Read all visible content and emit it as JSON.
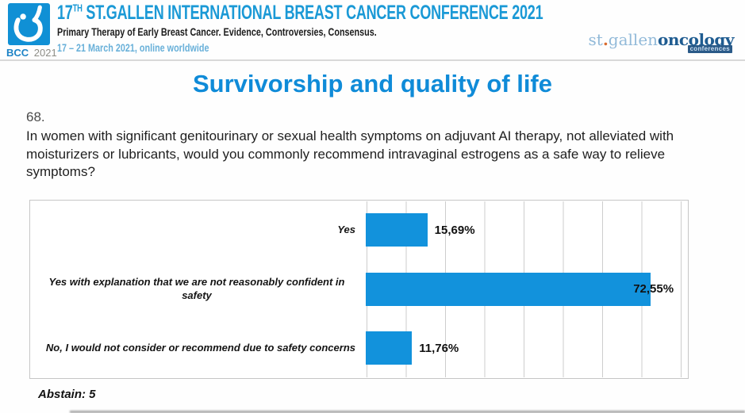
{
  "header": {
    "badge_text": "BCC",
    "badge_year": "2021",
    "title_number": "17",
    "title_ordinal": "TH",
    "title_text": " ST.GALLEN INTERNATIONAL BREAST CANCER CONFERENCE 2021",
    "subtitle": "Primary Therapy of Early Breast Cancer. Evidence, Controversies, Consensus.",
    "date_line": "17 – 21 March 2021, online worldwide",
    "brand": {
      "st": "st",
      "dot": ".",
      "gallen": "gallen",
      "oncology": "oncology",
      "conferences": "conferences"
    }
  },
  "slide": {
    "title": "Survivorship and quality of life",
    "question_number": "68.",
    "question_text": "In women with significant genitourinary or sexual health symptoms on adjuvant AI therapy, not alleviated with moisturizers or lubricants, would you commonly recommend intravaginal estrogens as a safe way to relieve symptoms?",
    "abstain_note": "Abstain: 5"
  },
  "chart_data": {
    "type": "bar",
    "orientation": "horizontal",
    "title": "",
    "categories": [
      "Yes",
      "Yes with explanation that we are not reasonably confident in safety",
      "No, I would not consider or recommend due to safety concerns"
    ],
    "values": [
      15.69,
      72.55,
      11.76
    ],
    "value_labels": [
      "15,69%",
      "72,55%",
      "11,76%"
    ],
    "axis_max_pct": 82,
    "gridline_step_pct": 10,
    "grid": true,
    "legend": false,
    "bar_color": "#1292dc",
    "abstain": 5
  },
  "colors": {
    "header_blue": "#1a99d6",
    "date_blue": "#68b0d9",
    "slide_title_blue": "#0f8bd8",
    "bar_blue": "#1292dc",
    "brand_light_blue": "#92bad9",
    "brand_dark_blue": "#1f5c91",
    "brand_dot_orange": "#d96b2f",
    "logo_square_blue": "#1090d5"
  }
}
